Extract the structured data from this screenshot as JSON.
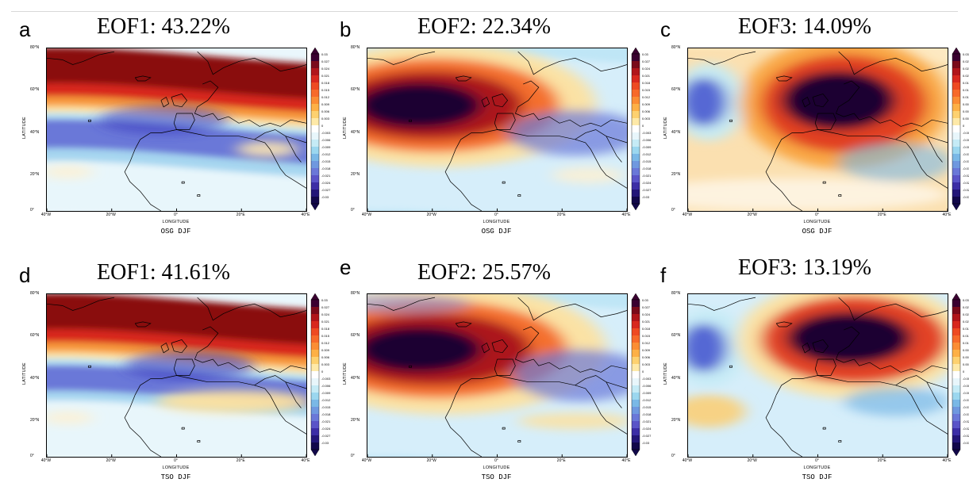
{
  "panels": [
    {
      "letter": "a",
      "title": "EOF1: 43.22%",
      "caption": "OSG DJF"
    },
    {
      "letter": "b",
      "title": "EOF2: 22.34%",
      "caption": "OSG DJF"
    },
    {
      "letter": "c",
      "title": "EOF3: 14.09%",
      "caption": "OSG DJF"
    },
    {
      "letter": "d",
      "title": "EOF1: 41.61%",
      "caption": "TSO DJF"
    },
    {
      "letter": "e",
      "title": "EOF2: 25.57%",
      "caption": "TSO DJF"
    },
    {
      "letter": "f",
      "title": "EOF3: 13.19%",
      "caption": "TSO DJF"
    }
  ],
  "axes": {
    "xlabel": "LONGITUDE",
    "ylabel": "LATITUDE",
    "xticks": [
      "40°W",
      "20°W",
      "0°",
      "20°E",
      "40°E"
    ],
    "yticks": [
      "80°N",
      "60°N",
      "40°N",
      "20°N",
      "0°"
    ]
  },
  "colorbar": {
    "labels": [
      "0.03",
      "0.027",
      "0.024",
      "0.021",
      "0.018",
      "0.015",
      "0.012",
      "0.009",
      "0.006",
      "0.003",
      "0",
      "-0.003",
      "-0.006",
      "-0.009",
      "-0.012",
      "-0.015",
      "-0.018",
      "-0.021",
      "-0.024",
      "-0.027",
      "-0.03"
    ],
    "colors": [
      "#3a0030",
      "#7a0a1a",
      "#b0151a",
      "#d8281e",
      "#ee4a22",
      "#f76a2a",
      "#fb8d34",
      "#fdb046",
      "#fdd170",
      "#fee9a8",
      "#ffffff",
      "#e8f6fb",
      "#c5ebf6",
      "#9bd7ef",
      "#7ab8e6",
      "#6f98df",
      "#6a78d8",
      "#5a54c8",
      "#3c2ea6",
      "#231678",
      "#12084a"
    ]
  }
}
